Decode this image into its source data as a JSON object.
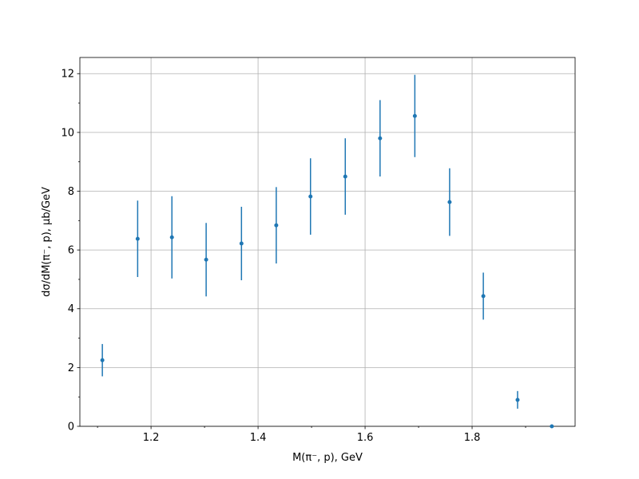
{
  "chart_data": {
    "type": "errorbar",
    "x_label": "M(π⁻, p), GeV",
    "y_label": "dσ/dM(π⁻, p), μb/GeV",
    "x": [
      1.109,
      1.175,
      1.239,
      1.303,
      1.369,
      1.434,
      1.498,
      1.563,
      1.628,
      1.693,
      1.758,
      1.821,
      1.885,
      1.949
    ],
    "values": [
      2.25,
      6.38,
      6.43,
      5.67,
      6.22,
      6.84,
      7.82,
      8.5,
      9.8,
      10.56,
      7.63,
      4.43,
      0.9,
      0
    ],
    "errors": [
      0.55,
      1.3,
      1.4,
      1.25,
      1.25,
      1.3,
      1.3,
      1.3,
      1.3,
      1.4,
      1.15,
      0.8,
      0.3,
      0
    ],
    "color": "#1f77b4",
    "xlim": [
      1.067,
      1.9925
    ],
    "ylim": [
      0,
      12.55
    ],
    "xticks": [
      1.2,
      1.4,
      1.6,
      1.8
    ],
    "yticks": [
      0,
      2,
      4,
      6,
      8,
      10,
      12
    ],
    "xminorticks": [
      1.1,
      1.3,
      1.5,
      1.7,
      1.9
    ],
    "yminorticks": [
      1,
      3,
      5,
      7,
      9,
      11
    ],
    "grid": true
  }
}
